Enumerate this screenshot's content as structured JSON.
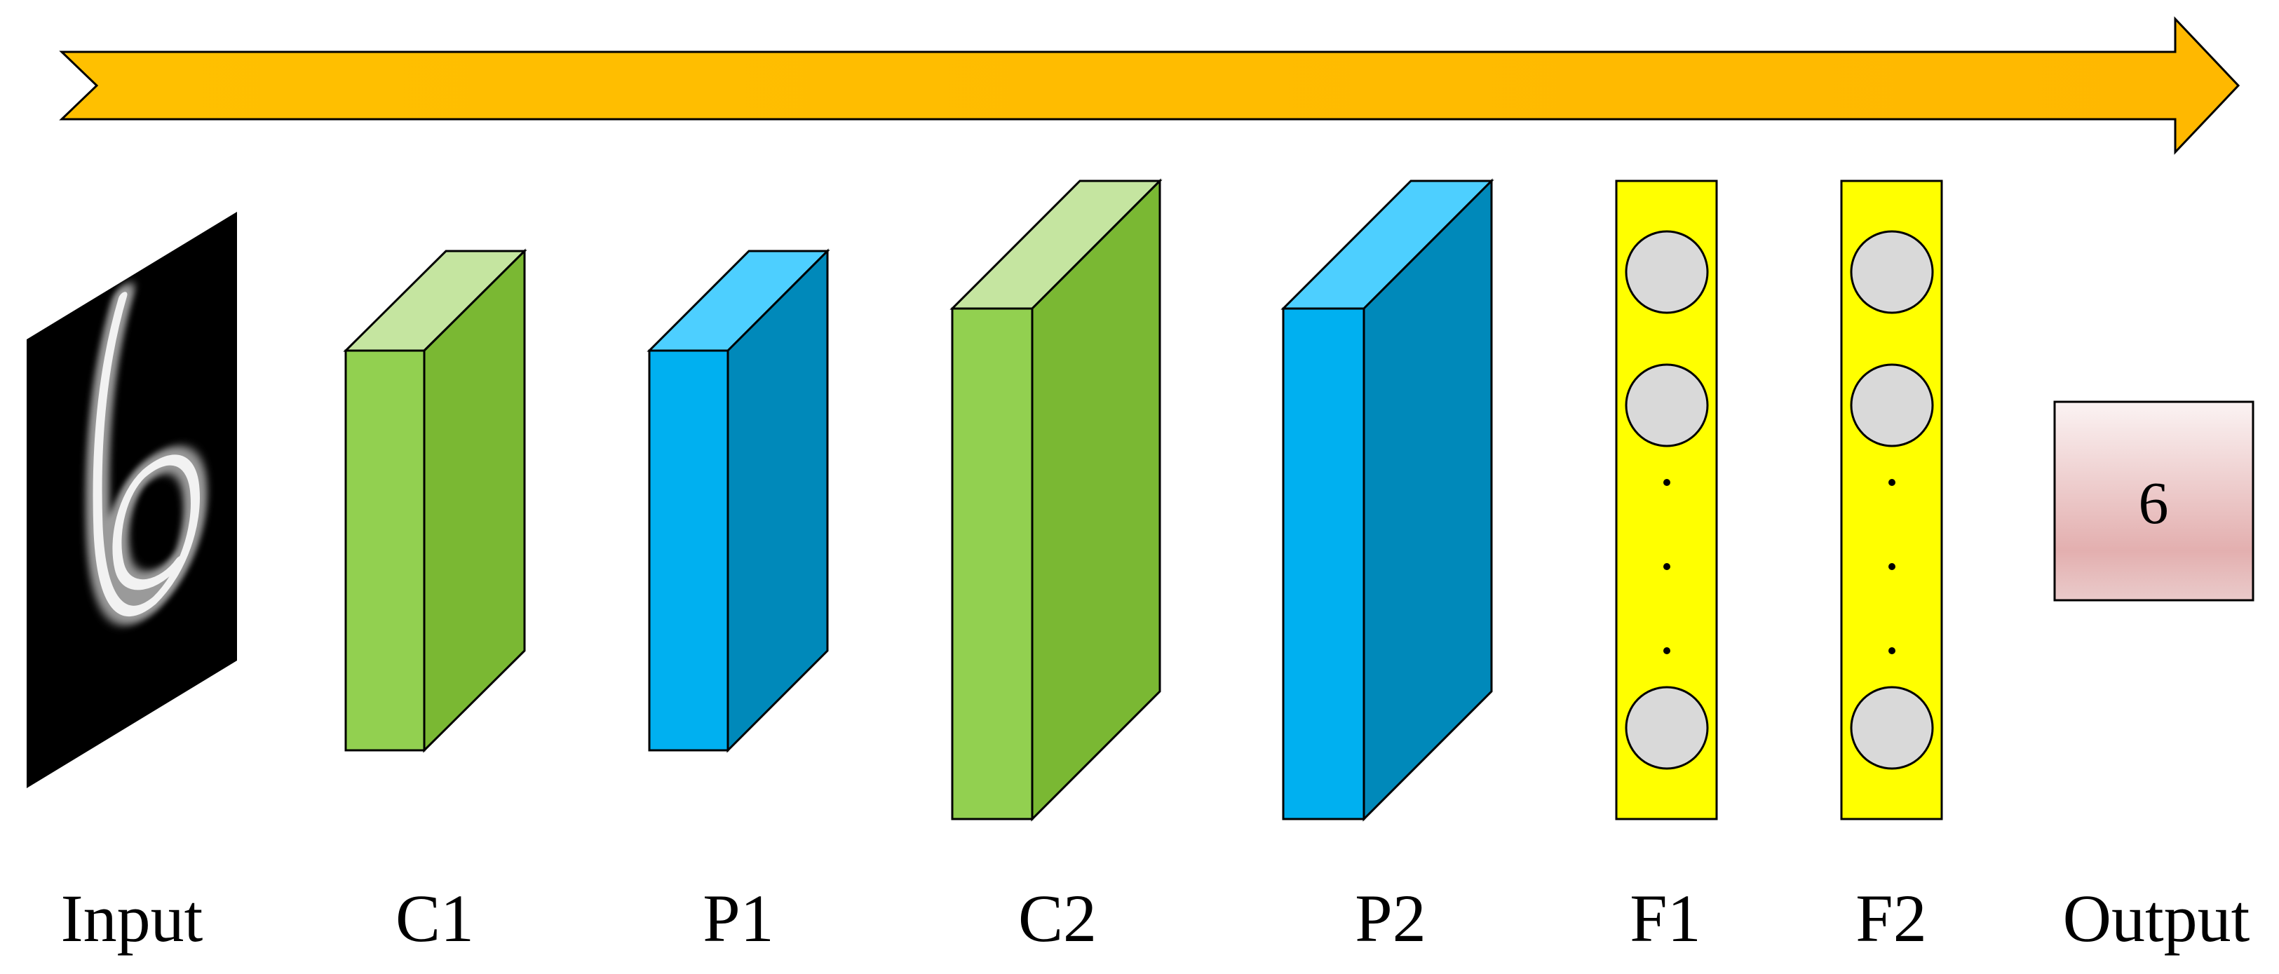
{
  "labels": {
    "input": "Input",
    "c1": "C1",
    "p1": "P1",
    "c2": "C2",
    "p2": "P2",
    "f1": "F1",
    "f2": "F2",
    "output": "Output"
  },
  "output_value": "6",
  "input_digit": "6",
  "colors": {
    "arrow": "#FFC000",
    "conv_front": "#92D050",
    "conv_side": "#7AB833",
    "conv_top": "#C5E5A0",
    "pool_front": "#00B0F0",
    "pool_side": "#0089BA",
    "pool_top": "#4DCFFF",
    "fc_bar": "#FFFF00",
    "neuron": "#D9D9D9",
    "output_top": "#F8EDED",
    "output_bottom": "#E0AAAA"
  }
}
